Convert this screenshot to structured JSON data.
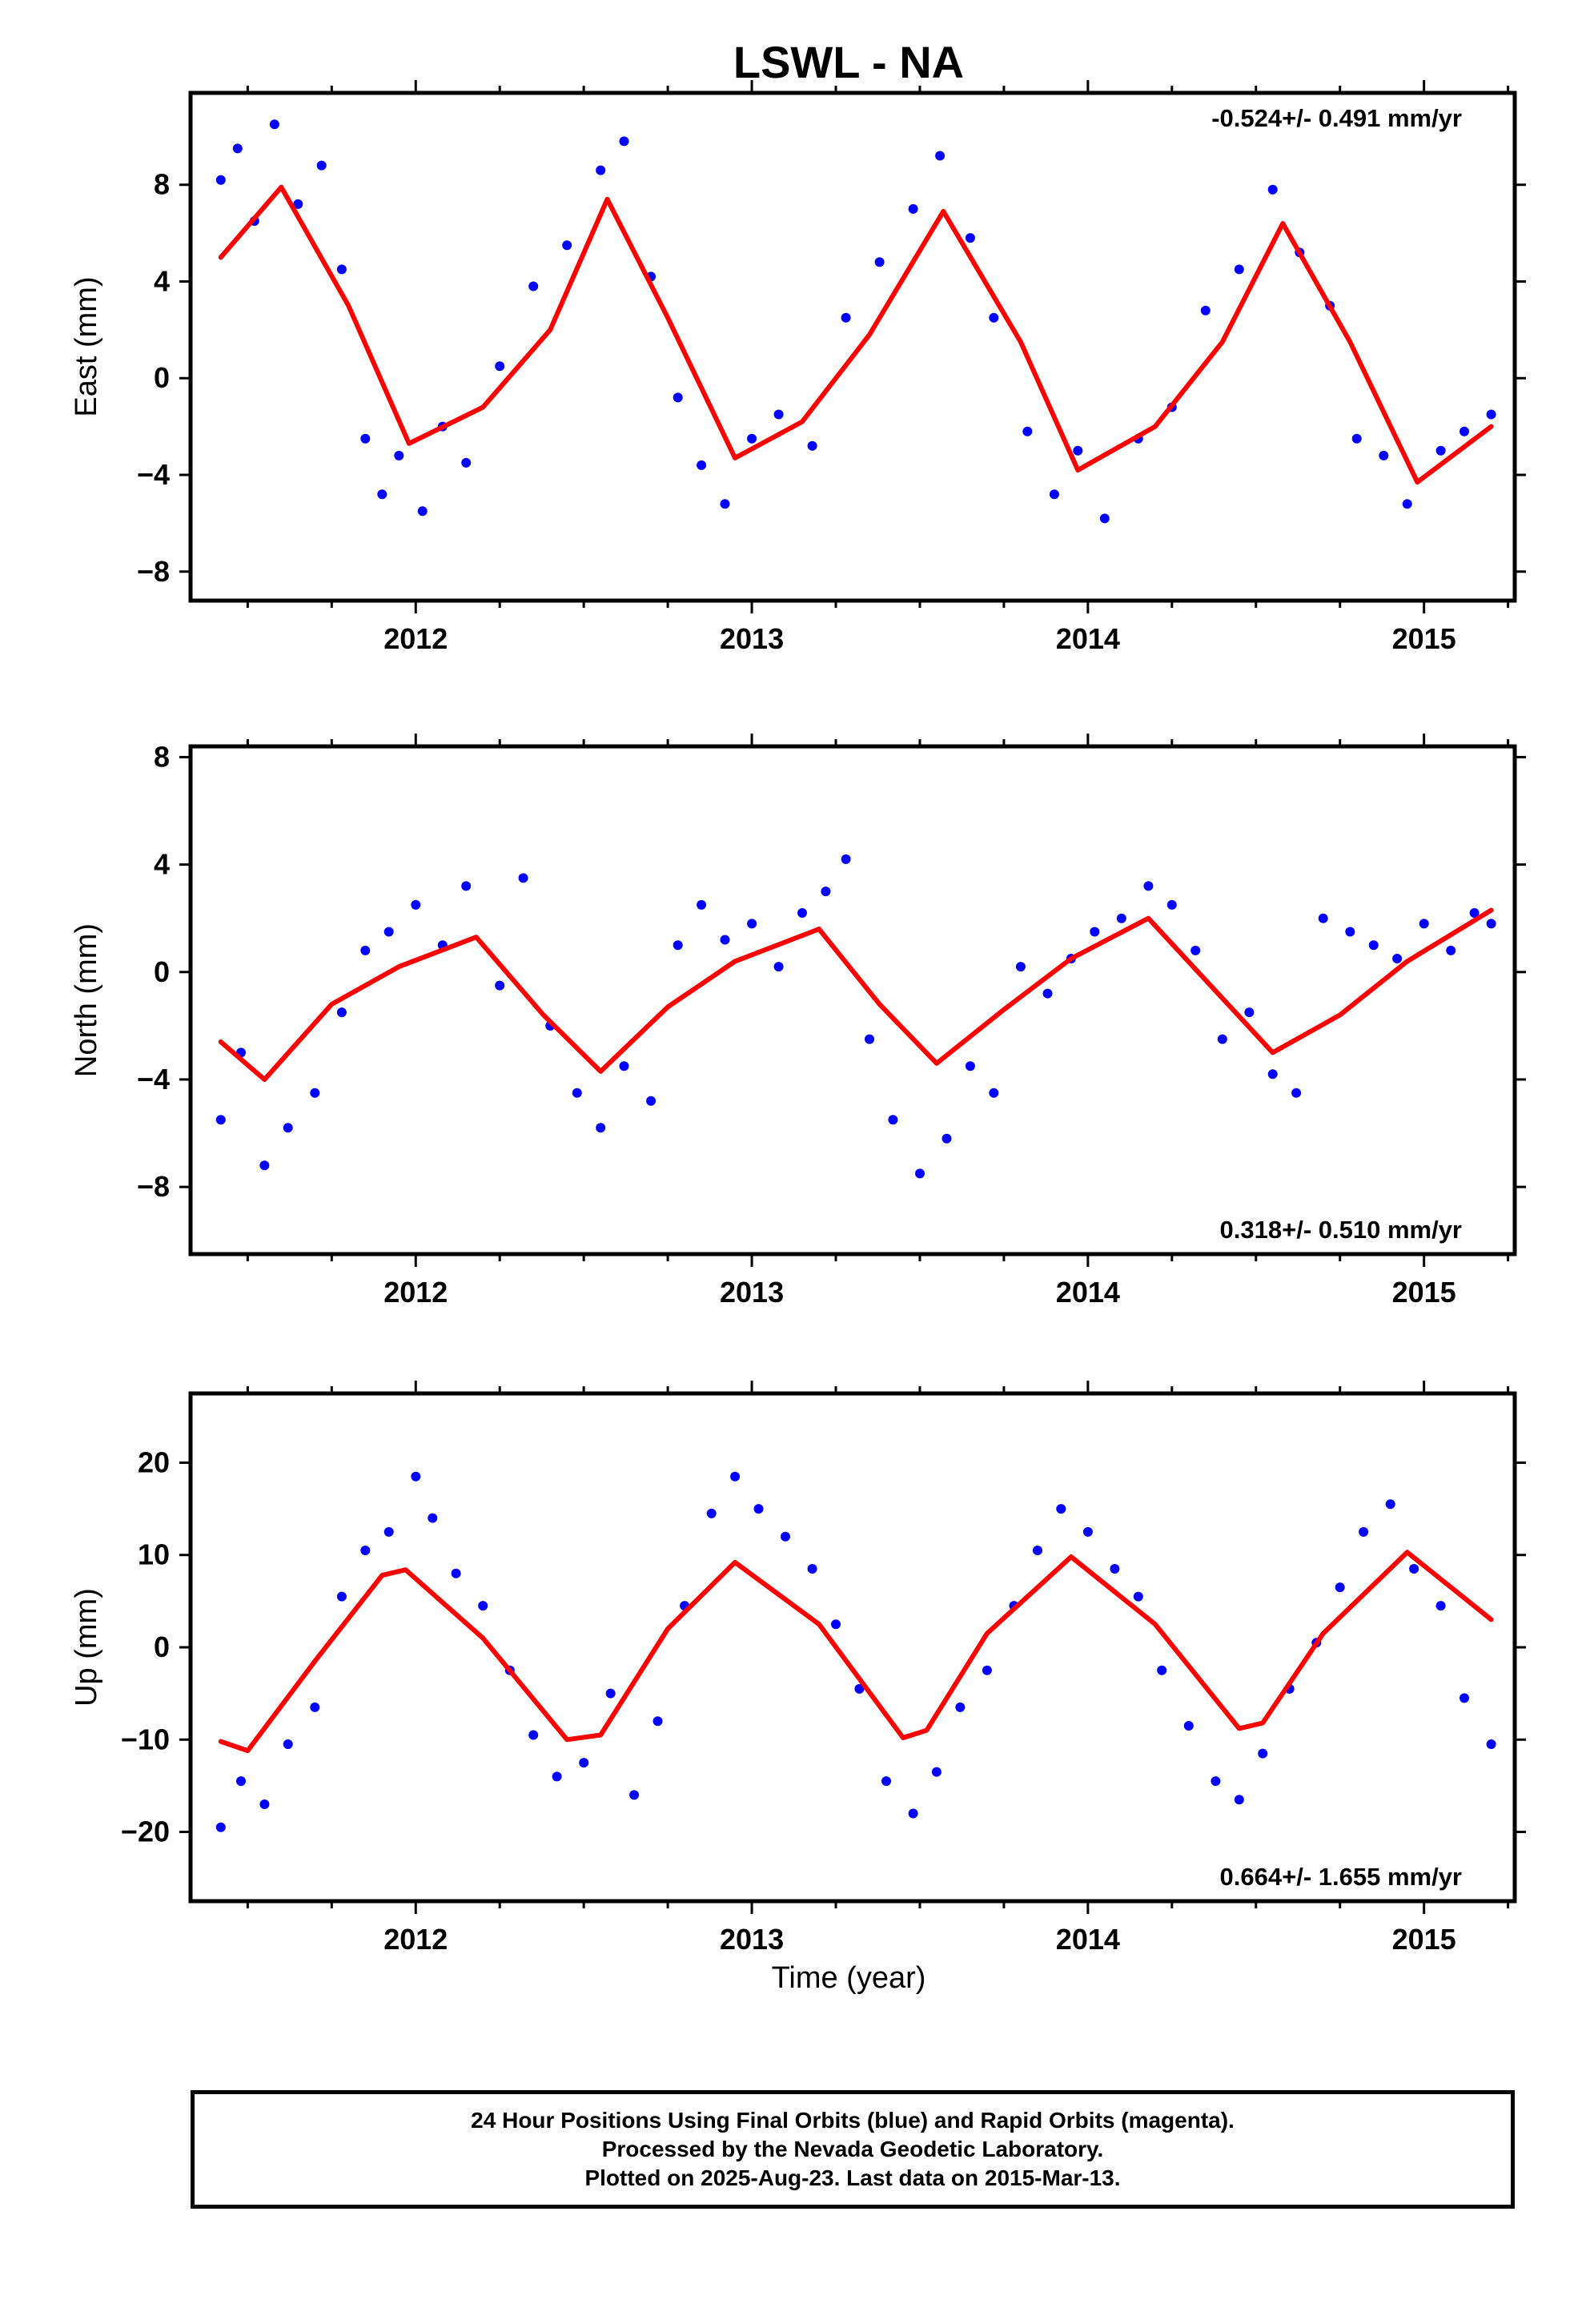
{
  "title": "LSWL - NA",
  "colors": {
    "points": "#0000ff",
    "fit": "#ff0000",
    "frame": "#000000"
  },
  "chart_data": [
    {
      "type": "scatter",
      "panel": "east",
      "ylabel": "East (mm)",
      "xlabel": "",
      "xlim": [
        2011.33,
        2015.27
      ],
      "ylim": [
        -9.2,
        11.8
      ],
      "yticks": [
        -8,
        -4,
        0,
        4,
        8
      ],
      "xticks": [
        2012,
        2013,
        2014,
        2015
      ],
      "x_tick_labels": [
        "2012",
        "2013",
        "2014",
        "2015"
      ],
      "rate_label": "-0.524+/- 0.491 mm/yr",
      "rate_position": "top-right",
      "fit_curve": {
        "x": [
          2011.42,
          2011.6,
          2011.8,
          2011.98,
          2012.2,
          2012.4,
          2012.57,
          2012.75,
          2012.95,
          2013.15,
          2013.35,
          2013.57,
          2013.8,
          2013.97,
          2014.2,
          2014.4,
          2014.58,
          2014.78,
          2014.98,
          2015.2
        ],
        "y": [
          5.0,
          7.9,
          3.0,
          -2.7,
          -1.2,
          2.0,
          7.4,
          2.5,
          -3.3,
          -1.8,
          1.8,
          6.9,
          1.5,
          -3.8,
          -2.0,
          1.5,
          6.4,
          1.5,
          -4.3,
          -2.0
        ]
      },
      "points": {
        "x": [
          2011.42,
          2011.47,
          2011.52,
          2011.58,
          2011.65,
          2011.72,
          2011.78,
          2011.85,
          2011.9,
          2011.95,
          2012.02,
          2012.08,
          2012.15,
          2012.25,
          2012.35,
          2012.45,
          2012.55,
          2012.62,
          2012.7,
          2012.78,
          2012.85,
          2012.92,
          2013.0,
          2013.08,
          2013.18,
          2013.28,
          2013.38,
          2013.48,
          2013.56,
          2013.65,
          2013.72,
          2013.82,
          2013.9,
          2013.97,
          2014.05,
          2014.15,
          2014.25,
          2014.35,
          2014.45,
          2014.55,
          2014.63,
          2014.72,
          2014.8,
          2014.88,
          2014.95,
          2015.05,
          2015.12,
          2015.2
        ],
        "y": [
          8.2,
          9.5,
          6.5,
          10.5,
          7.2,
          8.8,
          4.5,
          -2.5,
          -4.8,
          -3.2,
          -5.5,
          -2.0,
          -3.5,
          0.5,
          3.8,
          5.5,
          8.6,
          9.8,
          4.2,
          -0.8,
          -3.6,
          -5.2,
          -2.5,
          -1.5,
          -2.8,
          2.5,
          4.8,
          7.0,
          9.2,
          5.8,
          2.5,
          -2.2,
          -4.8,
          -3.0,
          -5.8,
          -2.5,
          -1.2,
          2.8,
          4.5,
          7.8,
          5.2,
          3.0,
          -2.5,
          -3.2,
          -5.2,
          -3.0,
          -2.2,
          -1.5
        ]
      }
    },
    {
      "type": "scatter",
      "panel": "north",
      "ylabel": "North (mm)",
      "xlabel": "",
      "xlim": [
        2011.33,
        2015.27
      ],
      "ylim": [
        -10.5,
        8.4
      ],
      "yticks": [
        -8,
        -4,
        0,
        4,
        8
      ],
      "xticks": [
        2012,
        2013,
        2014,
        2015
      ],
      "x_tick_labels": [
        "2012",
        "2013",
        "2014",
        "2015"
      ],
      "rate_label": "0.318+/- 0.510 mm/yr",
      "rate_position": "bottom-right",
      "fit_curve": {
        "x": [
          2011.42,
          2011.55,
          2011.75,
          2011.95,
          2012.18,
          2012.38,
          2012.55,
          2012.75,
          2012.95,
          2013.2,
          2013.38,
          2013.55,
          2013.75,
          2013.95,
          2014.18,
          2014.35,
          2014.55,
          2014.75,
          2014.95,
          2015.2
        ],
        "y": [
          -2.6,
          -4.0,
          -1.2,
          0.2,
          1.3,
          -1.6,
          -3.7,
          -1.3,
          0.4,
          1.6,
          -1.2,
          -3.4,
          -1.4,
          0.5,
          2.0,
          -0.3,
          -3.0,
          -1.6,
          0.4,
          2.3
        ]
      },
      "points": {
        "x": [
          2011.42,
          2011.48,
          2011.55,
          2011.62,
          2011.7,
          2011.78,
          2011.85,
          2011.92,
          2012.0,
          2012.08,
          2012.15,
          2012.25,
          2012.32,
          2012.4,
          2012.48,
          2012.55,
          2012.62,
          2012.7,
          2012.78,
          2012.85,
          2012.92,
          2013.0,
          2013.08,
          2013.15,
          2013.22,
          2013.28,
          2013.35,
          2013.42,
          2013.5,
          2013.58,
          2013.65,
          2013.72,
          2013.8,
          2013.88,
          2013.95,
          2014.02,
          2014.1,
          2014.18,
          2014.25,
          2014.32,
          2014.4,
          2014.48,
          2014.55,
          2014.62,
          2014.7,
          2014.78,
          2014.85,
          2014.92,
          2015.0,
          2015.08,
          2015.15,
          2015.2
        ],
        "y": [
          -5.5,
          -3.0,
          -7.2,
          -5.8,
          -4.5,
          -1.5,
          0.8,
          1.5,
          2.5,
          1.0,
          3.2,
          -0.5,
          3.5,
          -2.0,
          -4.5,
          -5.8,
          -3.5,
          -4.8,
          1.0,
          2.5,
          1.2,
          1.8,
          0.2,
          2.2,
          3.0,
          4.2,
          -2.5,
          -5.5,
          -7.5,
          -6.2,
          -3.5,
          -4.5,
          0.2,
          -0.8,
          0.5,
          1.5,
          2.0,
          3.2,
          2.5,
          0.8,
          -2.5,
          -1.5,
          -3.8,
          -4.5,
          2.0,
          1.5,
          1.0,
          0.5,
          1.8,
          0.8,
          2.2,
          1.8
        ]
      }
    },
    {
      "type": "scatter",
      "panel": "up",
      "ylabel": "Up (mm)",
      "xlabel": "Time (year)",
      "xlim": [
        2011.33,
        2015.27
      ],
      "ylim": [
        -27.5,
        27.5
      ],
      "yticks": [
        -20,
        -10,
        0,
        10,
        20
      ],
      "xticks": [
        2012,
        2013,
        2014,
        2015
      ],
      "x_tick_labels": [
        "2012",
        "2013",
        "2014",
        "2015"
      ],
      "rate_label": "0.664+/- 1.655 mm/yr",
      "rate_position": "bottom-right",
      "fit_curve": {
        "x": [
          2011.42,
          2011.5,
          2011.7,
          2011.9,
          2011.97,
          2012.2,
          2012.45,
          2012.55,
          2012.75,
          2012.95,
          2013.2,
          2013.45,
          2013.52,
          2013.7,
          2013.95,
          2014.2,
          2014.45,
          2014.52,
          2014.7,
          2014.95,
          2015.2
        ],
        "y": [
          -10.2,
          -11.2,
          -1.5,
          7.8,
          8.4,
          1.0,
          -10.0,
          -9.5,
          2.0,
          9.2,
          2.5,
          -9.8,
          -9.0,
          1.5,
          9.8,
          2.5,
          -8.8,
          -8.2,
          1.5,
          10.3,
          3.0
        ]
      },
      "points": {
        "x": [
          2011.42,
          2011.48,
          2011.55,
          2011.62,
          2011.7,
          2011.78,
          2011.85,
          2011.92,
          2012.0,
          2012.05,
          2012.12,
          2012.2,
          2012.28,
          2012.35,
          2012.42,
          2012.5,
          2012.58,
          2012.65,
          2012.72,
          2012.8,
          2012.88,
          2012.95,
          2013.02,
          2013.1,
          2013.18,
          2013.25,
          2013.32,
          2013.4,
          2013.48,
          2013.55,
          2013.62,
          2013.7,
          2013.78,
          2013.85,
          2013.92,
          2014.0,
          2014.08,
          2014.15,
          2014.22,
          2014.3,
          2014.38,
          2014.45,
          2014.52,
          2014.6,
          2014.68,
          2014.75,
          2014.82,
          2014.9,
          2014.97,
          2015.05,
          2015.12,
          2015.2
        ],
        "y": [
          -19.5,
          -14.5,
          -17.0,
          -10.5,
          -6.5,
          5.5,
          10.5,
          12.5,
          18.5,
          14.0,
          8.0,
          4.5,
          -2.5,
          -9.5,
          -14.0,
          -12.5,
          -5.0,
          -16.0,
          -8.0,
          4.5,
          14.5,
          18.5,
          15.0,
          12.0,
          8.5,
          2.5,
          -4.5,
          -14.5,
          -18.0,
          -13.5,
          -6.5,
          -2.5,
          4.5,
          10.5,
          15.0,
          12.5,
          8.5,
          5.5,
          -2.5,
          -8.5,
          -14.5,
          -16.5,
          -11.5,
          -4.5,
          0.5,
          6.5,
          12.5,
          15.5,
          8.5,
          4.5,
          -5.5,
          -10.5
        ]
      }
    }
  ],
  "footer": {
    "line1": "24 Hour Positions Using Final Orbits (blue) and Rapid Orbits (magenta).",
    "line2": "Processed by the Nevada Geodetic Laboratory.",
    "line3": "Plotted on 2025-Aug-23. Last data on 2015-Mar-13."
  }
}
